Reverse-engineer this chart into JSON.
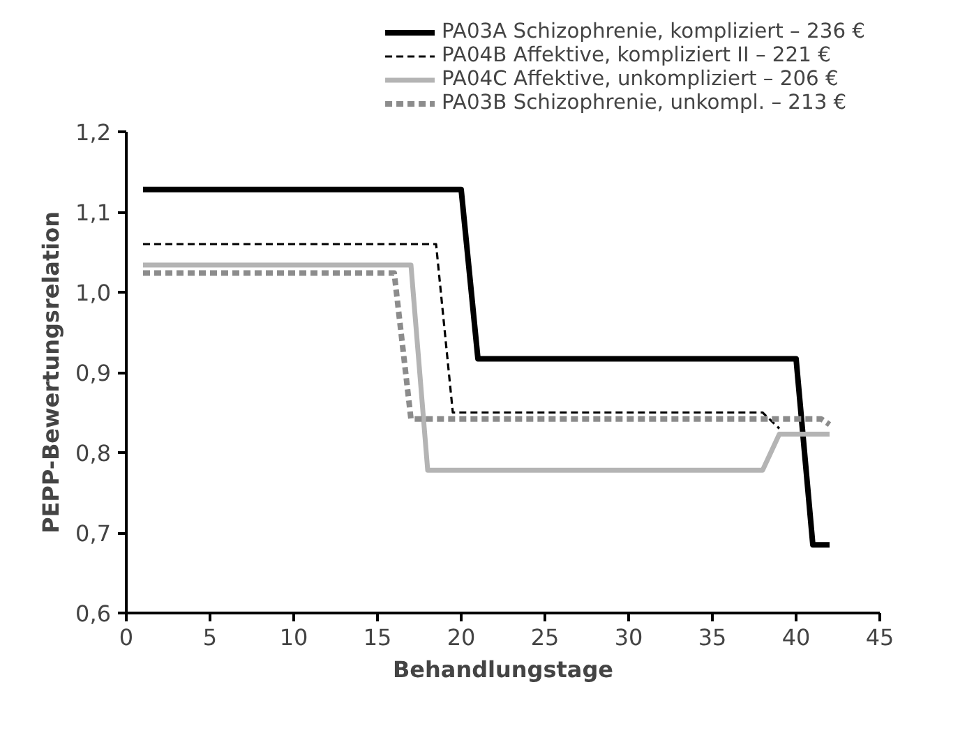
{
  "chart_data": {
    "type": "line",
    "xlabel": "Behandlungstage",
    "ylabel": "PEPP-Bewertungsrelation",
    "xlim": [
      0,
      45
    ],
    "xticks": [
      0,
      5,
      10,
      15,
      20,
      25,
      30,
      35,
      40,
      45
    ],
    "ylim": [
      0.6,
      1.2
    ],
    "yticks": [
      {
        "value": 0.6,
        "label": "0,6"
      },
      {
        "value": 0.7,
        "label": "0,7"
      },
      {
        "value": 0.8,
        "label": "0,8"
      },
      {
        "value": 0.9,
        "label": "0,9"
      },
      {
        "value": 1.0,
        "label": "1,0"
      },
      {
        "value": 1.1,
        "label": "1,1"
      },
      {
        "value": 1.2,
        "label": "1,2"
      }
    ],
    "grid": false,
    "legend": "top right",
    "marker": "none",
    "series": [
      {
        "name": "PA03A Schizophrenie, kompliziert – 236 €",
        "color": "#000000",
        "line_style": "solid",
        "x": [
          1,
          20,
          21,
          40,
          41,
          42
        ],
        "values": [
          1.128,
          1.128,
          0.917,
          0.917,
          0.685,
          0.685
        ]
      },
      {
        "name": "PA04B Affektive, kompliziert II – 221 €",
        "color": "#000000",
        "line_style": "dashed",
        "x": [
          1,
          18.5,
          19.5,
          38,
          39
        ],
        "values": [
          1.06,
          1.06,
          0.85,
          0.85,
          0.83
        ]
      },
      {
        "name": "PA04C Affektive, unkompliziert – 206 €",
        "color": "#b4b4b4",
        "line_style": "solid",
        "x": [
          1,
          17,
          18,
          38,
          39,
          42
        ],
        "values": [
          1.034,
          1.034,
          0.778,
          0.778,
          0.823,
          0.823
        ]
      },
      {
        "name": "PA03B Schizophrenie, unkompl. – 213 €",
        "color": "#8c8c8c",
        "line_style": "dashed",
        "x": [
          1,
          16,
          17,
          41.5,
          42
        ],
        "values": [
          1.024,
          1.024,
          0.842,
          0.842,
          0.835
        ]
      }
    ]
  }
}
